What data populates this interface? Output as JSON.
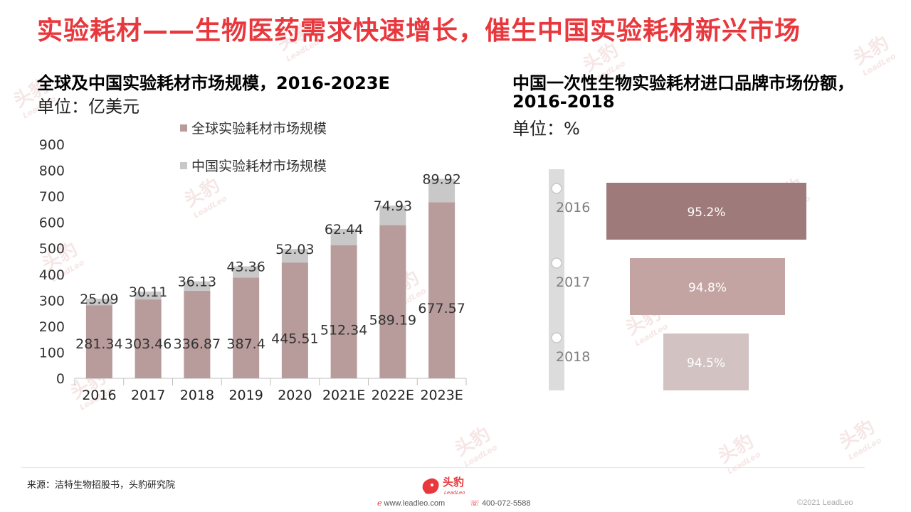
{
  "title": "实验耗材——生物医药需求快速增长，催生中国实验耗材新兴市场",
  "left_chart": {
    "title": "全球及中国实验耗材市场规模，2016-2023E",
    "unit": "单位：亿美元"
  },
  "right_chart": {
    "title_line1": "中国一次性生物实验耗材进口品牌市场份额，",
    "title_line2": "2016-2018",
    "unit": "单位：%"
  },
  "chart_data": [
    {
      "type": "bar",
      "stacked": true,
      "title": "全球及中国实验耗材市场规模，2016-2023E",
      "categories": [
        "2016",
        "2017",
        "2018",
        "2019",
        "2020",
        "2021E",
        "2022E",
        "2023E"
      ],
      "series": [
        {
          "name": "全球实验耗材市场规模",
          "color": "#b89b9b",
          "values": [
            281.34,
            303.46,
            336.87,
            387.4,
            445.51,
            512.34,
            589.19,
            677.57
          ],
          "labels": [
            "281.34",
            "303.46",
            "336.87",
            "387.4",
            "445.51",
            "512.34",
            "589.19",
            "677.57"
          ]
        },
        {
          "name": "中国实验耗材市场规模",
          "color": "#c8c8c8",
          "values": [
            25.09,
            30.11,
            36.13,
            43.36,
            52.03,
            62.44,
            74.93,
            89.92
          ],
          "labels": [
            "25.09",
            "30.11",
            "36.13",
            "43.36",
            "52.03",
            "62.44",
            "74.93",
            "89.92"
          ]
        }
      ],
      "ylim": [
        0,
        900
      ],
      "yticks": [
        "0",
        "100",
        "200",
        "300",
        "400",
        "500",
        "600",
        "700",
        "800",
        "900"
      ],
      "legend": "top"
    },
    {
      "type": "bar",
      "orientation": "horizontal-funnel",
      "title": "中国一次性生物实验耗材进口品牌市场份额，2016-2018",
      "categories": [
        "2016",
        "2017",
        "2018"
      ],
      "values": [
        95.2,
        94.8,
        94.5
      ],
      "labels": [
        "95.2%",
        "94.8%",
        "94.5%"
      ],
      "colors": [
        "#9e7a7a",
        "#c4a3a3",
        "#d3c2c2"
      ]
    }
  ],
  "footer": {
    "source": "来源：洁特生物招股书，头豹研究院",
    "logo_text": "头豹",
    "logo_sub": "LeadLeo",
    "website": "www.leadleo.com",
    "phone": "400-072-5588",
    "copyright": "©2021 LeadLeo"
  },
  "watermark": {
    "text": "头豹",
    "sub": "LeadLeo"
  },
  "colors": {
    "title": "#e8383d",
    "brand": "#e8383d"
  }
}
